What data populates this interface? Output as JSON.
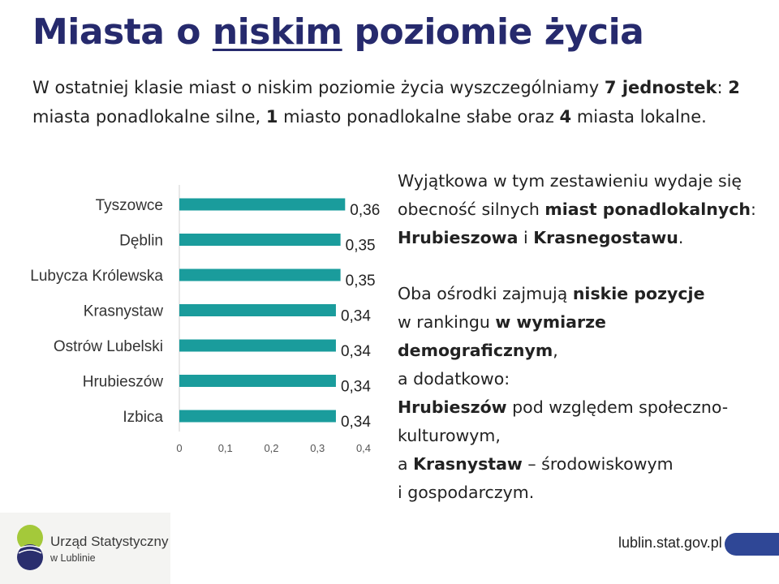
{
  "title": {
    "before": "Miasta o",
    "underlined": "niskim",
    "after": "poziomie życia"
  },
  "intro": {
    "p1": "W ostatniej klasie miast o niskim poziomie życia wyszczególniamy ",
    "b1": "7 jednostek",
    "p2": ": ",
    "b2": "2",
    "p3": " miasta ponadlokalne silne, ",
    "b3": "1",
    "p4": " miasto ponadlokalne słabe oraz ",
    "b4": "4",
    "p5": " miasta lokalne."
  },
  "chart_data": {
    "type": "bar",
    "orientation": "horizontal",
    "categories": [
      "Tyszowce",
      "Dęblin",
      "Lubycza Królewska",
      "Krasnystaw",
      "Ostrów Lubelski",
      "Hrubieszów",
      "Izbica"
    ],
    "values": [
      0.36,
      0.35,
      0.35,
      0.34,
      0.34,
      0.34,
      0.34
    ],
    "value_labels": [
      "0,36",
      "0,35",
      "0,35",
      "0,34",
      "0,34",
      "0,34",
      "0,34"
    ],
    "xlim": [
      0,
      0.4
    ],
    "ticks": [
      0,
      0.1,
      0.2,
      0.3,
      0.4
    ],
    "tick_labels": [
      "0",
      "0,1",
      "0,2",
      "0,3",
      "0,4"
    ],
    "bar_color": "#1a9c9c",
    "grid": false
  },
  "side": {
    "para1": {
      "t1": "Wyjątkowa w tym zestawieniu wydaje się obecność silnych ",
      "b1": "miast ponadlokalnych",
      "t2": ": ",
      "b2": "Hrubieszowa",
      "t3": " i ",
      "b3": "Krasnegostawu",
      "t4": "."
    },
    "para2": {
      "t1": "Oba ośrodki zajmują ",
      "b1": "niskie pozycje",
      "t2": "w rankingu ",
      "b2": "w wymiarze demograficznym",
      "t3": ",",
      "t4": "a dodatkowo:",
      "b3": "Hrubieszów",
      "t5": " pod względem społeczno-kulturowym,",
      "t6": "a ",
      "b4": "Krasnystaw",
      "t7": " – środowiskowym",
      "t8": "i gospodarczym."
    }
  },
  "footer": {
    "logo_line1": "Urząd Statystyczny",
    "logo_line2": "w Lublinie",
    "website": "lublin.stat.gov.pl"
  },
  "colors": {
    "title": "#262a6d",
    "bar": "#1a9c9c",
    "footer_pill": "#2f4796"
  }
}
